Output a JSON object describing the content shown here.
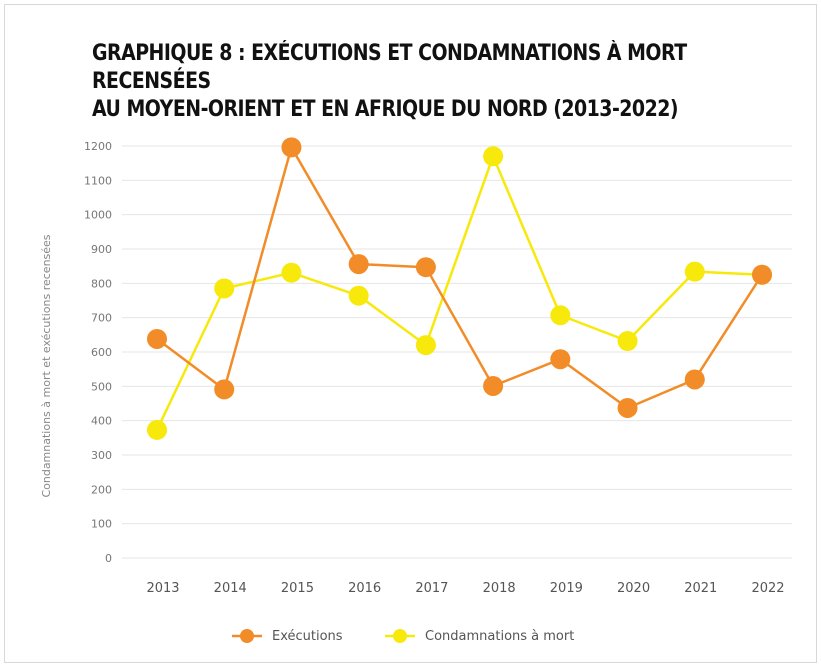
{
  "chart_data": {
    "type": "line",
    "title_lines": [
      "GRAPHIQUE 8 : EXÉCUTIONS ET CONDAMNATIONS À MORT RECENSÉES",
      "AU MOYEN-ORIENT ET EN AFRIQUE DU NORD (2013-2022)"
    ],
    "ylabel": "Condamnations à mort et exécutions recensées",
    "xlabel": "",
    "categories": [
      "2013",
      "2014",
      "2015",
      "2016",
      "2017",
      "2018",
      "2019",
      "2020",
      "2021",
      "2022"
    ],
    "ylim": [
      0,
      1200
    ],
    "yticks": [
      0,
      100,
      200,
      300,
      400,
      500,
      600,
      700,
      800,
      900,
      1000,
      1100,
      1200
    ],
    "grid": true,
    "legend_position": "bottom",
    "series": [
      {
        "name": "Exécutions",
        "color": "#f28c28",
        "values": [
          638,
          491,
          1196,
          856,
          847,
          501,
          579,
          437,
          520,
          825
        ]
      },
      {
        "name": "Condamnations à mort",
        "color": "#f7e90c",
        "values": [
          373,
          785,
          831,
          764,
          620,
          1170,
          707,
          632,
          834,
          825
        ]
      }
    ]
  }
}
